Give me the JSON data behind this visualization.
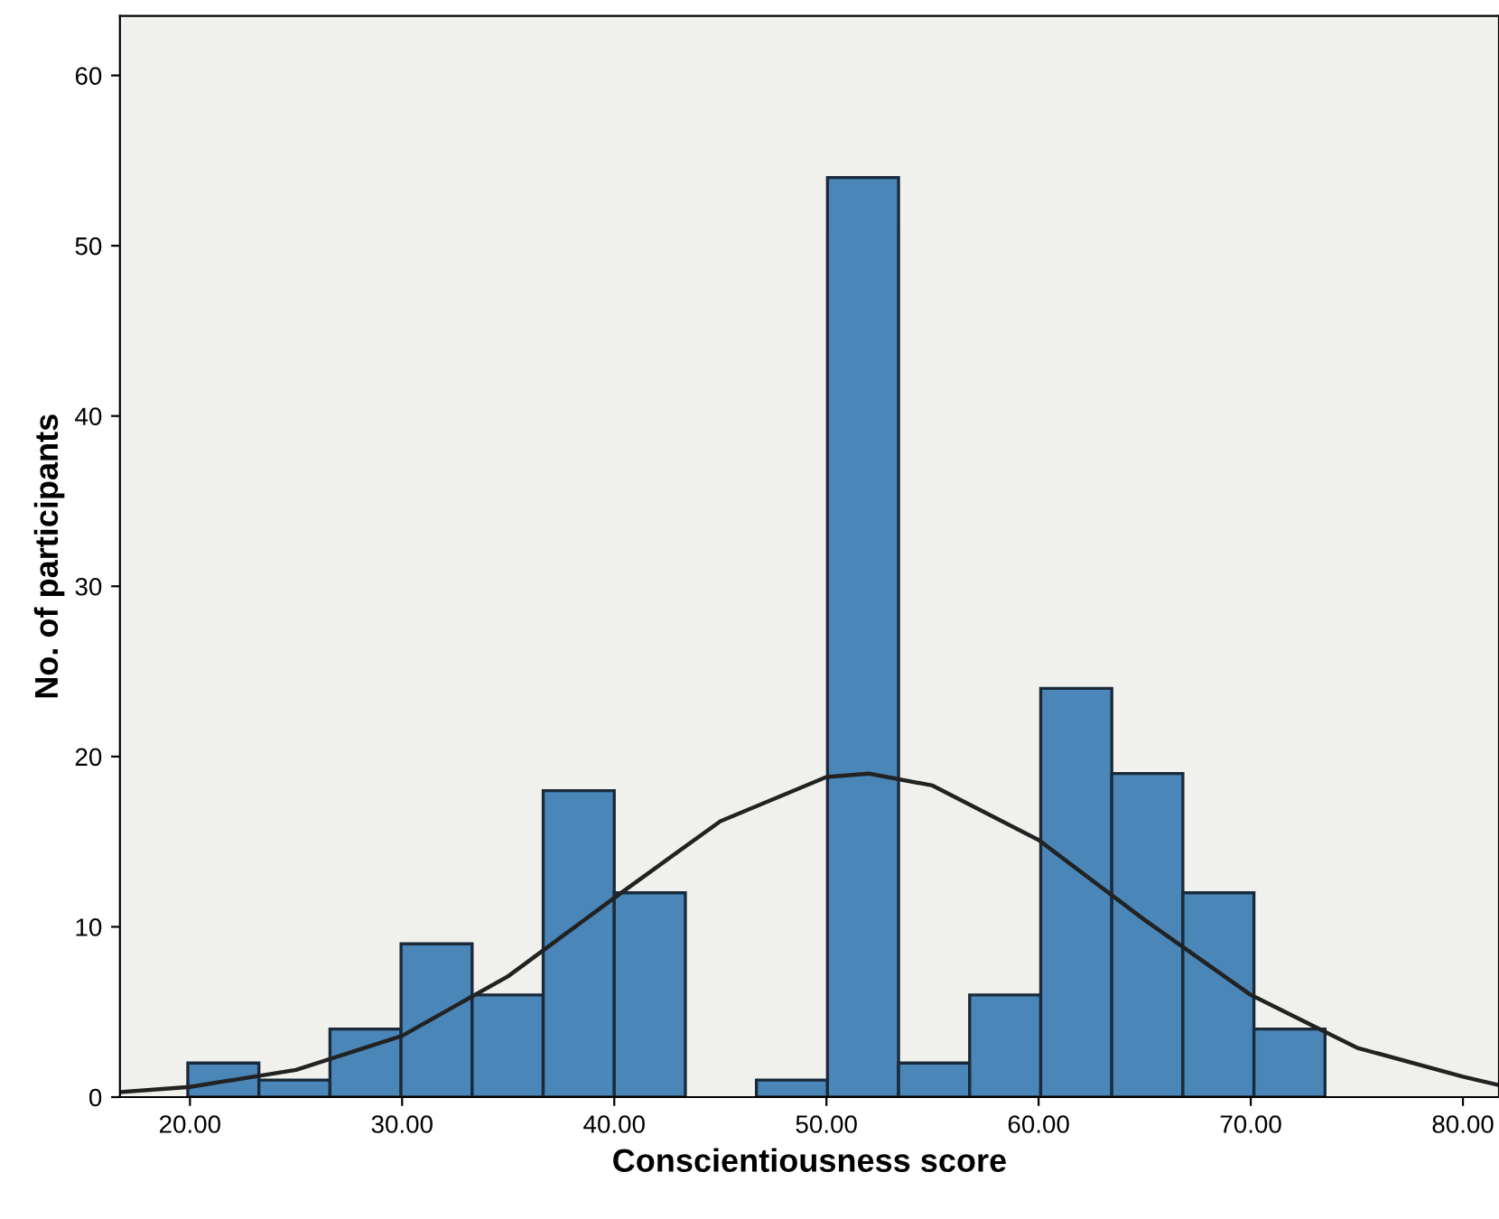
{
  "chart_data": {
    "type": "histogram",
    "xlabel": "Conscientiousness score",
    "ylabel": "No. of participants",
    "bins": [
      19.9,
      23.25,
      26.6,
      29.95,
      33.3,
      36.65,
      40.0,
      43.35,
      46.7,
      50.05,
      53.4,
      56.75,
      60.1,
      63.45,
      66.8,
      70.15,
      73.5
    ],
    "values": [
      2,
      1,
      4,
      9,
      6,
      18,
      12,
      0,
      1,
      54,
      2,
      6,
      24,
      19,
      12,
      4
    ],
    "color": "#4a86b8",
    "series": [
      {
        "type": "line",
        "color": "#222222",
        "x": [
          16.7,
          20,
          25,
          30,
          35,
          40,
          45,
          50,
          52,
          55,
          60,
          65,
          70,
          75,
          80,
          81.7
        ],
        "values": [
          0.3,
          0.6,
          1.6,
          3.6,
          7.1,
          11.7,
          16.2,
          18.8,
          19.0,
          18.3,
          15.1,
          10.4,
          6.0,
          2.9,
          1.2,
          0.7
        ]
      }
    ],
    "xlim": [
      16.7,
      81.7
    ],
    "ylim": [
      0,
      63.5
    ],
    "xticks": [
      {
        "value": 20,
        "label": "20.00"
      },
      {
        "value": 30,
        "label": "30.00"
      },
      {
        "value": 40,
        "label": "40.00"
      },
      {
        "value": 50,
        "label": "50.00"
      },
      {
        "value": 60,
        "label": "60.00"
      },
      {
        "value": 70,
        "label": "70.00"
      },
      {
        "value": 80,
        "label": "80.00"
      }
    ],
    "yticks": [
      0,
      10,
      20,
      30,
      40,
      50,
      60
    ],
    "grid": false
  }
}
